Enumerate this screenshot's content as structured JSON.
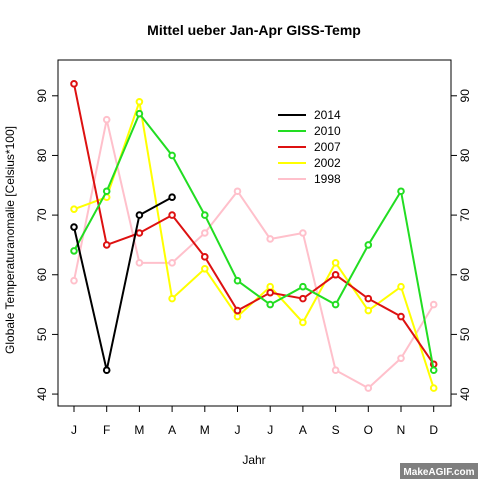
{
  "chart_data": {
    "type": "line",
    "title": "Mittel ueber Jan-Apr GISS-Temp",
    "xlabel": "Jahr",
    "ylabel": "Globale Temperaturanomalie [Celsius*100]",
    "categories": [
      "J",
      "F",
      "M",
      "A",
      "M",
      "J",
      "J",
      "A",
      "S",
      "O",
      "N",
      "D"
    ],
    "ylim": [
      38,
      96
    ],
    "yticks": [
      40,
      50,
      60,
      70,
      80,
      90
    ],
    "grid": false,
    "legend_position": "top-right",
    "series": [
      {
        "name": "2014",
        "color": "#000000",
        "values": [
          68,
          44,
          70,
          73,
          null,
          null,
          null,
          null,
          null,
          null,
          null,
          null
        ]
      },
      {
        "name": "2010",
        "color": "#22dd22",
        "values": [
          64,
          74,
          87,
          80,
          70,
          59,
          55,
          58,
          55,
          65,
          74,
          44
        ]
      },
      {
        "name": "2007",
        "color": "#dd1111",
        "values": [
          92,
          65,
          67,
          70,
          63,
          54,
          57,
          56,
          60,
          56,
          53,
          45
        ]
      },
      {
        "name": "2002",
        "color": "#ffff00",
        "values": [
          71,
          73,
          89,
          56,
          61,
          53,
          58,
          52,
          62,
          54,
          58,
          41
        ]
      },
      {
        "name": "1998",
        "color": "#ffc0cb",
        "values": [
          59,
          86,
          62,
          62,
          67,
          74,
          66,
          67,
          44,
          41,
          46,
          55
        ]
      }
    ]
  },
  "watermark": {
    "text": "MakeAGIF.com"
  }
}
